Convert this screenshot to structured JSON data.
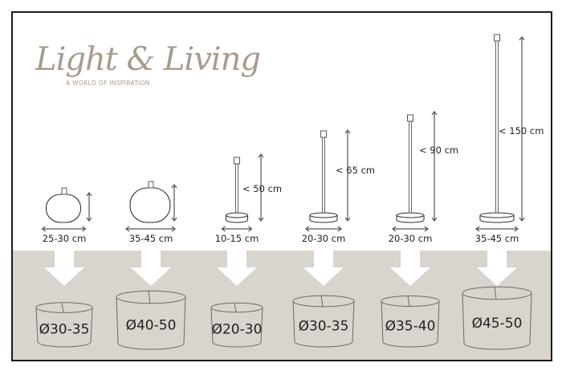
{
  "logo": {
    "name": "Light & Living",
    "tagline": "A WORLD OF INSPIRATION",
    "color": "#a89c8f"
  },
  "colors": {
    "band": "#d9d5ce",
    "line": "#555555",
    "frame": "#1a1a1a"
  },
  "lamps": [
    {
      "type": "table-base-ceramic",
      "width_label": "25-30 cm",
      "height_label": "",
      "shade_label": "Ø30-35"
    },
    {
      "type": "table-base-ceramic",
      "width_label": "35-45 cm",
      "height_label": "",
      "shade_label": "Ø40-50"
    },
    {
      "type": "stand",
      "width_label": "10-15 cm",
      "height_label": "< 50 cm",
      "shade_label": "Ø20-30"
    },
    {
      "type": "stand",
      "width_label": "20-30 cm",
      "height_label": "< 65 cm",
      "shade_label": "Ø30-35"
    },
    {
      "type": "stand",
      "width_label": "20-30 cm",
      "height_label": "< 90 cm",
      "shade_label": "Ø35-40"
    },
    {
      "type": "stand",
      "width_label": "35-45 cm",
      "height_label": "< 150 cm",
      "shade_label": "Ø45-50"
    }
  ]
}
